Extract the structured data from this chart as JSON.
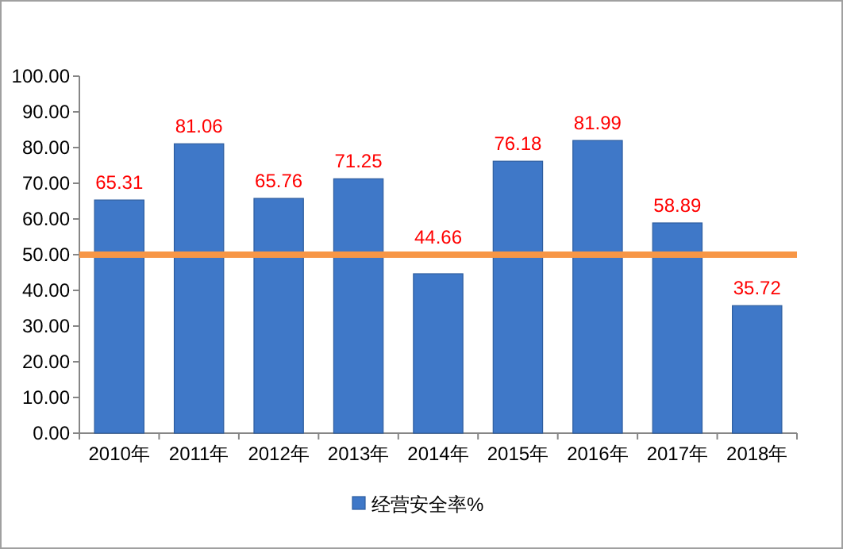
{
  "chart_data": {
    "type": "bar",
    "categories": [
      "2010年",
      "2011年",
      "2012年",
      "2013年",
      "2014年",
      "2015年",
      "2016年",
      "2017年",
      "2018年"
    ],
    "series": [
      {
        "name": "经营安全率%",
        "color": "#3f78c8",
        "values": [
          65.31,
          81.06,
          65.76,
          71.25,
          44.66,
          76.18,
          81.99,
          58.89,
          35.72
        ]
      }
    ],
    "value_labels": [
      "65.31",
      "81.06",
      "65.76",
      "71.25",
      "44.66",
      "76.18",
      "81.99",
      "58.89",
      "35.72"
    ],
    "ylim": [
      0,
      100
    ],
    "yticks": [
      {
        "value": 0,
        "label": "0.00"
      },
      {
        "value": 10,
        "label": "10.00"
      },
      {
        "value": 20,
        "label": "20.00"
      },
      {
        "value": 30,
        "label": "30.00"
      },
      {
        "value": 40,
        "label": "40.00"
      },
      {
        "value": 50,
        "label": "50.00"
      },
      {
        "value": 60,
        "label": "60.00"
      },
      {
        "value": 70,
        "label": "70.00"
      },
      {
        "value": 80,
        "label": "80.00"
      },
      {
        "value": 90,
        "label": "90.00"
      },
      {
        "value": 100,
        "label": "100.00"
      }
    ],
    "ref_lines": [
      {
        "axis": "y",
        "value": 50,
        "color": "#f79646"
      }
    ],
    "grid": false,
    "legend": "bottom"
  }
}
